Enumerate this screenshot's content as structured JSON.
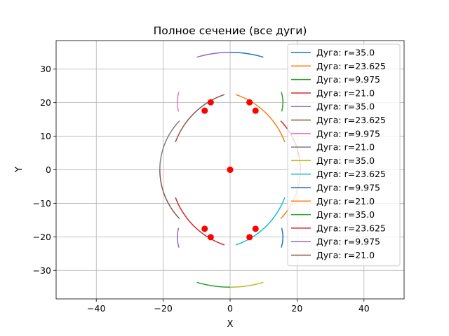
{
  "chart_data": {
    "type": "line",
    "title": "Полное сечение (все дуги)",
    "xlabel": "X",
    "ylabel": "Y",
    "xlim": [
      -52,
      52
    ],
    "ylim": [
      -38.5,
      38.5
    ],
    "xticks": [
      -40,
      -20,
      0,
      20,
      40
    ],
    "yticks": [
      -30,
      -20,
      -10,
      0,
      10,
      20,
      30
    ],
    "grid": true,
    "legend_position": "upper-right",
    "series": [
      {
        "name": "Дуга: r=35.0",
        "color": "#1f77b4",
        "arc": {
          "cx": 0,
          "cy": 0,
          "r": 35.0,
          "start": 73.5,
          "end": 90
        }
      },
      {
        "name": "Дуга: r=23.625",
        "color": "#ff7f0e",
        "arc": {
          "cx": -5.8,
          "cy": 0,
          "r": 23.625,
          "start": 20.5,
          "end": 71.5
        }
      },
      {
        "name": "Дуга: r=9.975",
        "color": "#2ca02c",
        "arc": {
          "cx": 5.8,
          "cy": 20.1,
          "r": 9.975,
          "start": -16,
          "end": 18
        }
      },
      {
        "name": "Дуга: r=21.0",
        "color": "#d62728",
        "arc": {
          "cx": 0,
          "cy": 0,
          "r": 21.0,
          "start": 0,
          "end": 44
        }
      },
      {
        "name": "Дуга: r=35.0",
        "color": "#9467bd",
        "arc": {
          "cx": 0,
          "cy": 0,
          "r": 35.0,
          "start": 90,
          "end": 106.5
        }
      },
      {
        "name": "Дуга: r=23.625",
        "color": "#8c564b",
        "arc": {
          "cx": 5.8,
          "cy": 0,
          "r": 23.625,
          "start": 108.5,
          "end": 159.5
        }
      },
      {
        "name": "Дуга: r=9.975",
        "color": "#e377c2",
        "arc": {
          "cx": -5.8,
          "cy": 20.1,
          "r": 9.975,
          "start": 162,
          "end": 196
        }
      },
      {
        "name": "Дуга: r=21.0",
        "color": "#7f7f7f",
        "arc": {
          "cx": 0,
          "cy": 0,
          "r": 21.0,
          "start": 136,
          "end": 180
        }
      },
      {
        "name": "Дуга: r=35.0",
        "color": "#bcbd22",
        "arc": {
          "cx": 0,
          "cy": 0,
          "r": 35.0,
          "start": -90,
          "end": -73.5
        }
      },
      {
        "name": "Дуга: r=23.625",
        "color": "#17becf",
        "arc": {
          "cx": -5.8,
          "cy": 0,
          "r": 23.625,
          "start": -71.5,
          "end": -20.5
        }
      },
      {
        "name": "Дуга: r=9.975",
        "color": "#1f77b4",
        "arc": {
          "cx": 5.8,
          "cy": -20.1,
          "r": 9.975,
          "start": -18,
          "end": 16
        }
      },
      {
        "name": "Дуга: r=21.0",
        "color": "#ff7f0e",
        "arc": {
          "cx": 0,
          "cy": 0,
          "r": 21.0,
          "start": -44,
          "end": 0
        }
      },
      {
        "name": "Дуга: r=35.0",
        "color": "#2ca02c",
        "arc": {
          "cx": 0,
          "cy": 0,
          "r": 35.0,
          "start": -106.5,
          "end": -90
        }
      },
      {
        "name": "Дуга: r=23.625",
        "color": "#d62728",
        "arc": {
          "cx": 5.8,
          "cy": 0,
          "r": 23.625,
          "start": -159.5,
          "end": -108.5
        }
      },
      {
        "name": "Дуга: r=9.975",
        "color": "#9467bd",
        "arc": {
          "cx": -5.8,
          "cy": -20.1,
          "r": 9.975,
          "start": 164,
          "end": 198
        }
      },
      {
        "name": "Дуга: r=21.0",
        "color": "#8c564b",
        "arc": {
          "cx": 0,
          "cy": 0,
          "r": 21.0,
          "start": -180,
          "end": -136
        }
      }
    ],
    "centers": {
      "color": "#ff0000",
      "points": [
        [
          0,
          0
        ],
        [
          0,
          0
        ],
        [
          5.8,
          20.1
        ],
        [
          -5.8,
          20.1
        ],
        [
          7.6,
          17.6
        ],
        [
          -7.6,
          17.6
        ],
        [
          5.8,
          -20.1
        ],
        [
          -5.8,
          -20.1
        ],
        [
          7.6,
          -17.6
        ],
        [
          -7.6,
          -17.6
        ]
      ]
    }
  }
}
